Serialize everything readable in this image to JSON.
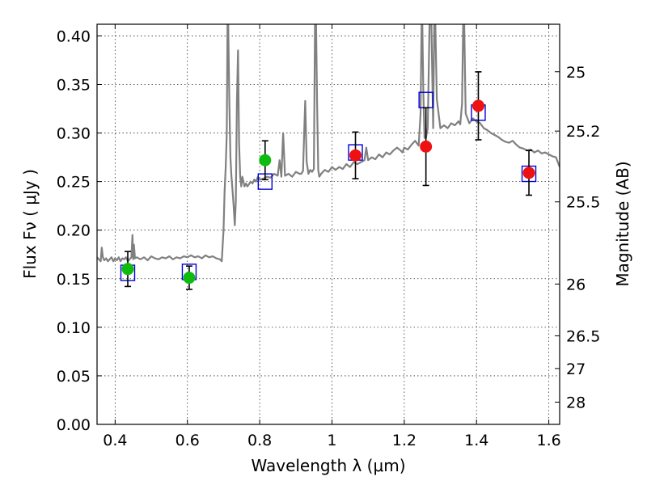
{
  "chart_data": {
    "type": "scatter",
    "title": "",
    "xlabel": "Wavelength  λ (μm)",
    "ylabel": "Flux  Fν  ( μJy )",
    "ylabel_right": "Magnitude (AB)",
    "xlim": [
      0.35,
      1.63
    ],
    "ylim": [
      0.0,
      0.412
    ],
    "grid": true,
    "x_ticks": [
      0.4,
      0.6,
      0.8,
      1.0,
      1.2,
      1.4,
      1.6
    ],
    "x_tick_labels": [
      "0.4",
      "0.6",
      "0.8",
      "1",
      "1.2",
      "1.4",
      "1.6"
    ],
    "y_ticks": [
      0.0,
      0.05,
      0.1,
      0.15,
      0.2,
      0.25,
      0.3,
      0.35,
      0.4
    ],
    "y_tick_labels": [
      "0.00",
      "0.05",
      "0.10",
      "0.15",
      "0.20",
      "0.25",
      "0.30",
      "0.35",
      "0.40"
    ],
    "right_ticks": [
      {
        "label": "25",
        "flux": 0.3631
      },
      {
        "label": "25.2",
        "flux": 0.302
      },
      {
        "label": "25.5",
        "flux": 0.2291
      },
      {
        "label": "26",
        "flux": 0.1445
      },
      {
        "label": "26.5",
        "flux": 0.0912
      },
      {
        "label": "27",
        "flux": 0.0575
      },
      {
        "label": "28",
        "flux": 0.0229
      }
    ],
    "colors": {
      "model": "#808080",
      "green": "#10bb10",
      "red": "#ee1111",
      "box": "#0000dd",
      "error": "#000000"
    },
    "series": [
      {
        "kind": "line",
        "x": [
          0.35,
          0.355,
          0.36,
          0.363,
          0.366,
          0.37,
          0.375,
          0.38,
          0.385,
          0.39,
          0.395,
          0.4,
          0.405,
          0.41,
          0.415,
          0.42,
          0.425,
          0.43,
          0.435,
          0.44,
          0.445,
          0.448,
          0.45,
          0.452,
          0.455,
          0.46,
          0.47,
          0.48,
          0.49,
          0.5,
          0.51,
          0.52,
          0.53,
          0.54,
          0.55,
          0.56,
          0.57,
          0.58,
          0.59,
          0.6,
          0.61,
          0.62,
          0.63,
          0.64,
          0.65,
          0.66,
          0.67,
          0.68,
          0.69,
          0.695,
          0.7,
          0.703,
          0.706,
          0.709,
          0.711,
          0.713,
          0.716,
          0.719,
          0.722,
          0.725,
          0.728,
          0.731,
          0.734,
          0.737,
          0.74,
          0.743,
          0.746,
          0.749,
          0.752,
          0.755,
          0.758,
          0.762,
          0.766,
          0.77,
          0.775,
          0.78,
          0.785,
          0.79,
          0.795,
          0.8,
          0.81,
          0.82,
          0.83,
          0.84,
          0.85,
          0.855,
          0.86,
          0.865,
          0.87,
          0.88,
          0.89,
          0.9,
          0.91,
          0.915,
          0.92,
          0.923,
          0.926,
          0.93,
          0.935,
          0.94,
          0.945,
          0.95,
          0.953,
          0.956,
          0.959,
          0.962,
          0.965,
          0.97,
          0.98,
          0.99,
          1.0,
          1.01,
          1.02,
          1.03,
          1.04,
          1.05,
          1.06,
          1.07,
          1.08,
          1.09,
          1.095,
          1.1,
          1.11,
          1.12,
          1.13,
          1.14,
          1.15,
          1.16,
          1.17,
          1.18,
          1.19,
          1.195,
          1.2,
          1.21,
          1.22,
          1.23,
          1.24,
          1.245,
          1.248,
          1.25,
          1.253,
          1.256,
          1.26,
          1.265,
          1.27,
          1.275,
          1.278,
          1.28,
          1.283,
          1.286,
          1.29,
          1.3,
          1.31,
          1.32,
          1.33,
          1.34,
          1.35,
          1.355,
          1.36,
          1.363,
          1.366,
          1.37,
          1.38,
          1.39,
          1.4,
          1.41,
          1.42,
          1.43,
          1.44,
          1.45,
          1.46,
          1.47,
          1.48,
          1.49,
          1.5,
          1.51,
          1.52,
          1.53,
          1.54,
          1.55,
          1.56,
          1.57,
          1.58,
          1.59,
          1.6,
          1.61,
          1.62,
          1.63
        ],
        "y": [
          0.172,
          0.17,
          0.168,
          0.182,
          0.172,
          0.169,
          0.171,
          0.168,
          0.17,
          0.172,
          0.168,
          0.171,
          0.169,
          0.172,
          0.168,
          0.171,
          0.17,
          0.172,
          0.168,
          0.17,
          0.172,
          0.195,
          0.17,
          0.185,
          0.171,
          0.172,
          0.17,
          0.172,
          0.169,
          0.173,
          0.171,
          0.17,
          0.172,
          0.171,
          0.173,
          0.17,
          0.172,
          0.171,
          0.173,
          0.172,
          0.174,
          0.172,
          0.173,
          0.171,
          0.174,
          0.172,
          0.173,
          0.171,
          0.17,
          0.168,
          0.2,
          0.24,
          0.265,
          0.3,
          0.412,
          0.412,
          0.33,
          0.275,
          0.255,
          0.24,
          0.225,
          0.205,
          0.23,
          0.33,
          0.385,
          0.29,
          0.255,
          0.245,
          0.255,
          0.25,
          0.245,
          0.248,
          0.245,
          0.247,
          0.25,
          0.248,
          0.252,
          0.25,
          0.255,
          0.252,
          0.253,
          0.255,
          0.254,
          0.258,
          0.256,
          0.272,
          0.255,
          0.3,
          0.256,
          0.258,
          0.255,
          0.26,
          0.258,
          0.258,
          0.261,
          0.3,
          0.333,
          0.27,
          0.258,
          0.262,
          0.26,
          0.263,
          0.412,
          0.412,
          0.33,
          0.262,
          0.255,
          0.258,
          0.262,
          0.26,
          0.265,
          0.262,
          0.265,
          0.263,
          0.268,
          0.265,
          0.27,
          0.268,
          0.27,
          0.272,
          0.285,
          0.272,
          0.275,
          0.273,
          0.278,
          0.275,
          0.28,
          0.278,
          0.282,
          0.285,
          0.282,
          0.28,
          0.285,
          0.283,
          0.288,
          0.292,
          0.287,
          0.32,
          0.412,
          0.412,
          0.34,
          0.295,
          0.295,
          0.305,
          0.412,
          0.412,
          0.35,
          0.305,
          0.412,
          0.412,
          0.335,
          0.305,
          0.308,
          0.305,
          0.31,
          0.308,
          0.312,
          0.309,
          0.33,
          0.412,
          0.412,
          0.32,
          0.31,
          0.315,
          0.312,
          0.31,
          0.305,
          0.303,
          0.3,
          0.298,
          0.296,
          0.293,
          0.291,
          0.29,
          0.292,
          0.288,
          0.285,
          0.284,
          0.282,
          0.283,
          0.28,
          0.282,
          0.279,
          0.28,
          0.278,
          0.276,
          0.275,
          0.265
        ],
        "color_key": "model"
      },
      {
        "kind": "squares",
        "x": [
          0.435,
          0.605,
          0.815,
          1.065,
          1.26,
          1.405,
          1.545
        ],
        "y": [
          0.156,
          0.157,
          0.25,
          0.28,
          0.334,
          0.321,
          0.258
        ],
        "color_key": "box"
      },
      {
        "kind": "points",
        "x": [
          0.435,
          0.605,
          0.815
        ],
        "y": [
          0.16,
          0.151,
          0.272
        ],
        "yerr": [
          0.018,
          0.012,
          0.02
        ],
        "color_key": "green"
      },
      {
        "kind": "points",
        "x": [
          1.065,
          1.26,
          1.405,
          1.545
        ],
        "y": [
          0.277,
          0.286,
          0.328,
          0.259
        ],
        "yerr": [
          0.024,
          0.04,
          0.035,
          0.023
        ],
        "color_key": "red"
      }
    ]
  }
}
